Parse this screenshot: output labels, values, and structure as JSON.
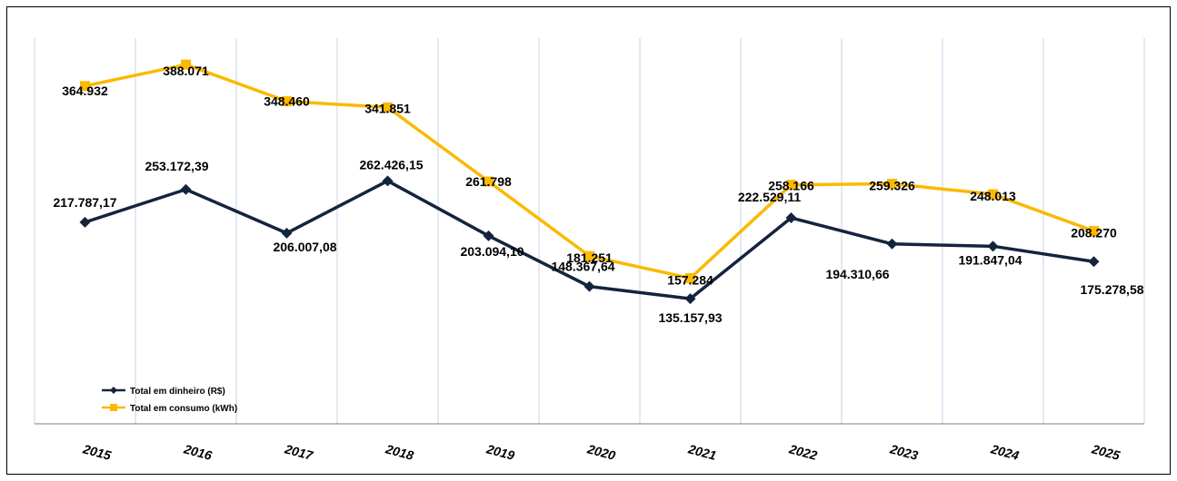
{
  "chart_data": {
    "type": "line",
    "title": "",
    "xlabel": "",
    "ylabel": "",
    "categories": [
      "2015",
      "2016",
      "2017",
      "2018",
      "2019",
      "2020",
      "2021",
      "2022",
      "2023",
      "2024",
      "2025"
    ],
    "ylim": [
      0,
      450000
    ],
    "grid": "vertical",
    "legend_position": "bottom-left",
    "series": [
      {
        "name": "Total em dinheiro (R$)",
        "color": "#14243d",
        "marker": "diamond",
        "values": [
          217787.17,
          253172.39,
          206007.08,
          262426.15,
          203094.1,
          148367.64,
          135157.93,
          222529.11,
          194310.66,
          191847.04,
          175278.58
        ],
        "labels": [
          "217.787,17",
          "253.172,39",
          "206.007,08",
          "262.426,15",
          "203.094,10",
          "148.367,64",
          "135.157,93",
          "222.529,11",
          "194.310,66",
          "191.847,04",
          "175.278,58"
        ]
      },
      {
        "name": "Total em consumo (kWh)",
        "color": "#fbb900",
        "marker": "square",
        "values": [
          364932,
          388071,
          348460,
          341851,
          261798,
          181251,
          157284,
          258166,
          259326,
          248013,
          208270
        ],
        "labels": [
          "364.932",
          "388.071",
          "348.460",
          "341.851",
          "261.798",
          "181.251",
          "157.284",
          "258.166",
          "259.326",
          "248.013",
          "208.270"
        ]
      }
    ]
  }
}
